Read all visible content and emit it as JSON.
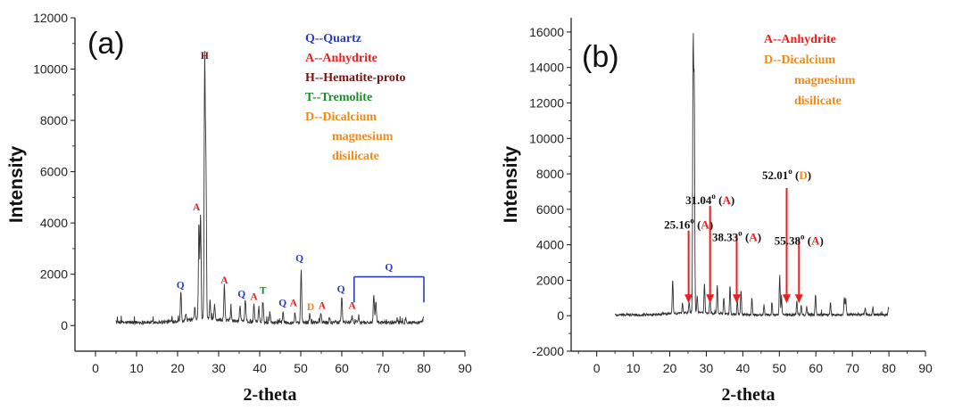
{
  "colors": {
    "Q": "#2a3dbd",
    "A": "#e8201e",
    "H": "#7a1212",
    "T": "#1c8a2c",
    "D": "#ee8a1c",
    "arrow": "#e8201e",
    "trace": "#333333"
  },
  "chart_data": [
    {
      "type": "line",
      "panel_label": "(a)",
      "xlabel": "2-theta",
      "ylabel": "Intensity",
      "xlim": [
        -5,
        90
      ],
      "ylim": [
        -1000,
        12000
      ],
      "x_ticks": [
        0,
        10,
        20,
        30,
        40,
        50,
        60,
        70,
        80,
        90
      ],
      "y_ticks": [
        0,
        2000,
        4000,
        6000,
        8000,
        10000,
        12000
      ],
      "x_range": [
        5,
        80
      ],
      "baseline": 120,
      "peaks": [
        {
          "x": 20.8,
          "y": 1300
        },
        {
          "x": 22.0,
          "y": 380
        },
        {
          "x": 24.2,
          "y": 600
        },
        {
          "x": 25.2,
          "y": 3900
        },
        {
          "x": 25.6,
          "y": 4300
        },
        {
          "x": 26.6,
          "y": 10200
        },
        {
          "x": 26.9,
          "y": 6200
        },
        {
          "x": 27.9,
          "y": 850
        },
        {
          "x": 29.0,
          "y": 700
        },
        {
          "x": 31.4,
          "y": 1500
        },
        {
          "x": 33.0,
          "y": 600
        },
        {
          "x": 35.2,
          "y": 750
        },
        {
          "x": 36.5,
          "y": 1000
        },
        {
          "x": 38.6,
          "y": 850
        },
        {
          "x": 39.8,
          "y": 700
        },
        {
          "x": 40.8,
          "y": 900
        },
        {
          "x": 42.5,
          "y": 500
        },
        {
          "x": 45.7,
          "y": 550
        },
        {
          "x": 48.6,
          "y": 500
        },
        {
          "x": 50.1,
          "y": 2200
        },
        {
          "x": 52.2,
          "y": 450
        },
        {
          "x": 54.9,
          "y": 500
        },
        {
          "x": 57.0,
          "y": 350
        },
        {
          "x": 60.0,
          "y": 1150
        },
        {
          "x": 62.5,
          "y": 400
        },
        {
          "x": 64.1,
          "y": 380
        },
        {
          "x": 67.8,
          "y": 1200
        },
        {
          "x": 68.3,
          "y": 950
        },
        {
          "x": 73.5,
          "y": 300
        },
        {
          "x": 75.6,
          "y": 320
        },
        {
          "x": 79.9,
          "y": 350
        }
      ],
      "legend": [
        {
          "text": "Q--Quartz",
          "color_key": "Q"
        },
        {
          "text": "A--Anhydrite",
          "color_key": "A"
        },
        {
          "text": "H--Hematite-proto",
          "color_key": "H"
        },
        {
          "text": "T--Tremolite",
          "color_key": "T"
        },
        {
          "text": "D--Dicalcium",
          "color_key": "D"
        },
        {
          "text": "magnesium",
          "color_key": "D"
        },
        {
          "text": "disilicate",
          "color_key": "D"
        }
      ],
      "peak_labels": [
        {
          "text": "H",
          "x": 26.6,
          "y": 10400,
          "color_key": "H"
        },
        {
          "text": "A",
          "x": 24.6,
          "y": 4500,
          "color_key": "A"
        },
        {
          "text": "Q",
          "x": 20.7,
          "y": 1450,
          "color_key": "Q"
        },
        {
          "text": "A",
          "x": 31.4,
          "y": 1650,
          "color_key": "A"
        },
        {
          "text": "Q",
          "x": 35.6,
          "y": 1100,
          "color_key": "Q"
        },
        {
          "text": "A",
          "x": 38.6,
          "y": 1000,
          "color_key": "A"
        },
        {
          "text": "T",
          "x": 40.8,
          "y": 1250,
          "color_key": "T"
        },
        {
          "text": "Q",
          "x": 45.6,
          "y": 750,
          "color_key": "Q"
        },
        {
          "text": "A",
          "x": 48.2,
          "y": 750,
          "color_key": "A"
        },
        {
          "text": "Q",
          "x": 49.7,
          "y": 2500,
          "color_key": "Q"
        },
        {
          "text": "D",
          "x": 52.4,
          "y": 600,
          "color_key": "D"
        },
        {
          "text": "A",
          "x": 55.2,
          "y": 650,
          "color_key": "A"
        },
        {
          "text": "Q",
          "x": 59.8,
          "y": 1300,
          "color_key": "Q"
        },
        {
          "text": "A",
          "x": 62.5,
          "y": 650,
          "color_key": "A"
        },
        {
          "text": "Q",
          "x": 71.5,
          "y": 2150,
          "color_key": "Q"
        }
      ],
      "bracket": {
        "x1": 63.0,
        "x2": 80.0,
        "y_top": 1900,
        "y_bottom": 900,
        "color_key": "Q"
      }
    },
    {
      "type": "line",
      "panel_label": "(b)",
      "xlabel": "2-theta",
      "ylabel": "Intensity",
      "xlim": [
        -7,
        90
      ],
      "ylim": [
        -2000,
        16800
      ],
      "x_ticks": [
        0,
        10,
        20,
        30,
        40,
        50,
        60,
        70,
        80,
        90
      ],
      "y_ticks": [
        -2000,
        0,
        2000,
        4000,
        6000,
        8000,
        10000,
        12000,
        14000,
        16000
      ],
      "x_range": [
        5,
        80
      ],
      "baseline": 50,
      "peaks": [
        {
          "x": 20.8,
          "y": 2000
        },
        {
          "x": 23.5,
          "y": 600
        },
        {
          "x": 25.3,
          "y": 700
        },
        {
          "x": 26.4,
          "y": 14900
        },
        {
          "x": 26.7,
          "y": 12700
        },
        {
          "x": 27.5,
          "y": 1000
        },
        {
          "x": 29.5,
          "y": 1700
        },
        {
          "x": 31.0,
          "y": 900
        },
        {
          "x": 33.0,
          "y": 1700
        },
        {
          "x": 34.8,
          "y": 1000
        },
        {
          "x": 36.5,
          "y": 1700
        },
        {
          "x": 38.5,
          "y": 800
        },
        {
          "x": 39.5,
          "y": 1400
        },
        {
          "x": 42.5,
          "y": 1000
        },
        {
          "x": 45.8,
          "y": 600
        },
        {
          "x": 48.0,
          "y": 700
        },
        {
          "x": 50.1,
          "y": 2300
        },
        {
          "x": 50.6,
          "y": 1000
        },
        {
          "x": 54.8,
          "y": 800
        },
        {
          "x": 56.0,
          "y": 600
        },
        {
          "x": 57.5,
          "y": 500
        },
        {
          "x": 59.9,
          "y": 1200
        },
        {
          "x": 64.0,
          "y": 700
        },
        {
          "x": 67.8,
          "y": 1000
        },
        {
          "x": 68.2,
          "y": 950
        },
        {
          "x": 73.5,
          "y": 450
        },
        {
          "x": 75.6,
          "y": 400
        },
        {
          "x": 79.9,
          "y": 500
        }
      ],
      "legend": [
        {
          "text": "A--Anhydrite",
          "color_key": "A"
        },
        {
          "text": "D--Dicalcium",
          "color_key": "D"
        },
        {
          "text": "magnesium",
          "color_key": "D"
        },
        {
          "text": "disilicate",
          "color_key": "D"
        }
      ],
      "annotations": [
        {
          "value": "25.16",
          "deg": "o",
          "open": " (",
          "code": "A",
          "close": ")",
          "code_key": "A",
          "label_x": 25.16,
          "label_y": 4900,
          "arrow_x": 25.16,
          "arrow_top": 4800,
          "arrow_bottom": 700
        },
        {
          "value": "31.04",
          "deg": "o",
          "open": " (",
          "code": "A",
          "close": ")",
          "code_key": "A",
          "label_x": 31.04,
          "label_y": 6300,
          "arrow_x": 31.04,
          "arrow_top": 6200,
          "arrow_bottom": 700
        },
        {
          "value": "38.33",
          "deg": "o",
          "open": " (",
          "code": "A",
          "close": ")",
          "code_key": "A",
          "label_x": 38.33,
          "label_y": 4200,
          "arrow_x": 38.33,
          "arrow_top": 4500,
          "arrow_bottom": 700
        },
        {
          "value": "52.01",
          "deg": "o",
          "open": " (",
          "code": "D",
          "close": ")",
          "code_key": "D",
          "label_x": 52.01,
          "label_y": 7700,
          "arrow_x": 52.01,
          "arrow_top": 7200,
          "arrow_bottom": 700
        },
        {
          "value": "55.38",
          "deg": "o",
          "open": " (",
          "code": "A",
          "close": ")",
          "code_key": "A",
          "label_x": 55.38,
          "label_y": 4000,
          "arrow_x": 55.38,
          "arrow_top": 4300,
          "arrow_bottom": 700
        }
      ]
    }
  ]
}
